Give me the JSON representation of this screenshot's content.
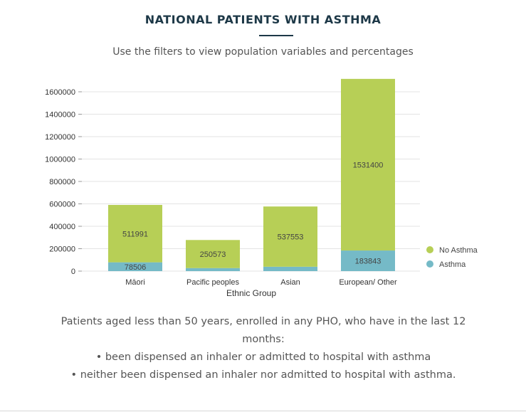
{
  "header": {
    "title": "NATIONAL PATIENTS WITH ASTHMA",
    "subtitle": "Use the filters to view population variables and percentages"
  },
  "chart_data": {
    "type": "bar",
    "stacked": true,
    "categories": [
      "Māori",
      "Pacific peoples",
      "Asian",
      "European/ Other"
    ],
    "series": [
      {
        "name": "Asthma",
        "color": "#75bac7",
        "values": [
          78506,
          27000,
          39000,
          183843
        ],
        "labels": [
          "78506",
          "",
          "",
          "183843"
        ]
      },
      {
        "name": "No Asthma",
        "color": "#b7cf56",
        "values": [
          511991,
          250573,
          537553,
          1531400
        ],
        "labels": [
          "511991",
          "250573",
          "537553",
          "1531400"
        ]
      }
    ],
    "xlabel": "Ethnic Group",
    "ylabel": "",
    "ylim": [
      0,
      1700000
    ],
    "yticks": [
      0,
      200000,
      400000,
      600000,
      800000,
      1000000,
      1200000,
      1400000,
      1600000
    ],
    "ytick_labels": [
      "0",
      "200000",
      "400000",
      "600000",
      "800000",
      "1000000",
      "1200000",
      "1400000",
      "1600000"
    ],
    "grid": true,
    "legend_position": "right",
    "legend_order": [
      "No Asthma",
      "Asthma"
    ]
  },
  "caption": {
    "intro": "Patients aged less than 50 years, enrolled in any PHO, who have in the last 12 months:",
    "bullets": [
      "• been dispensed an inhaler or admitted to hospital with asthma",
      "• neither been dispensed an inhaler nor admitted to hospital with asthma."
    ]
  }
}
